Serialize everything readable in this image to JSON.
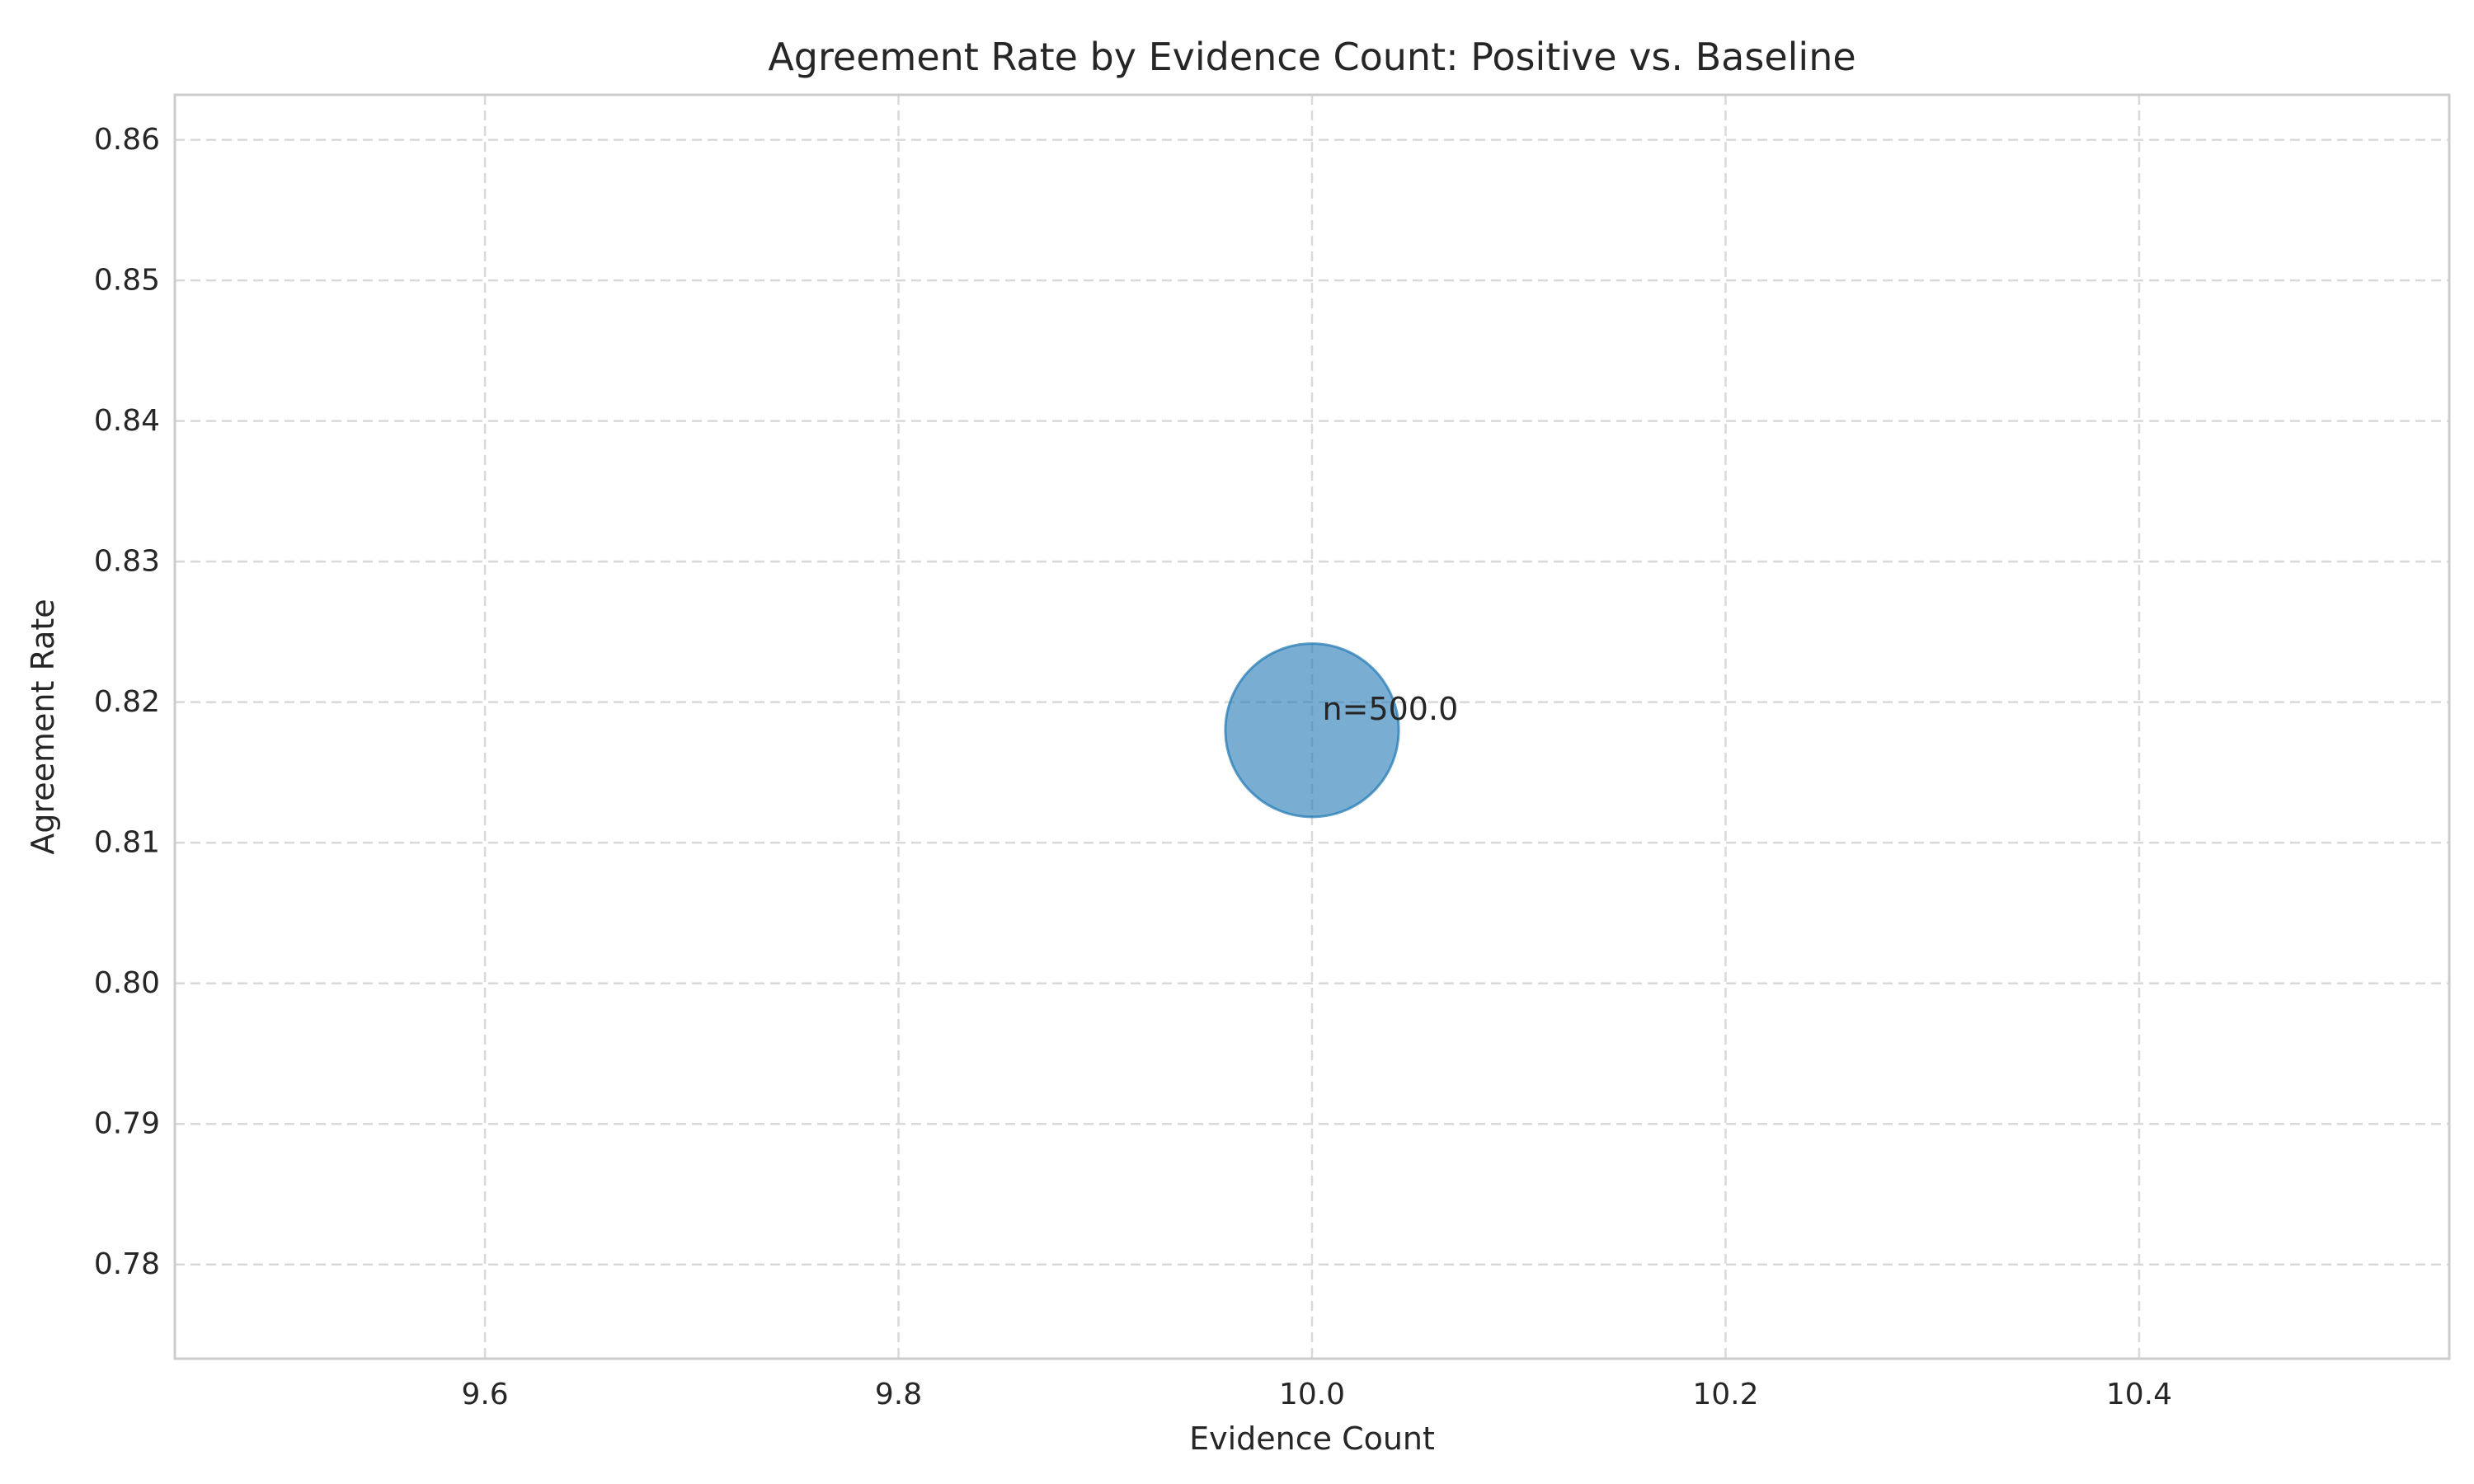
{
  "chart_data": {
    "type": "scatter",
    "title": "Agreement Rate by Evidence Count: Positive vs. Baseline",
    "xlabel": "Evidence Count",
    "ylabel": "Agreement Rate",
    "xlim": [
      9.45,
      10.55
    ],
    "ylim": [
      0.7733,
      0.8632
    ],
    "x_ticks": [
      9.6,
      9.8,
      10.0,
      10.2,
      10.4
    ],
    "x_tick_labels": [
      "9.6",
      "9.8",
      "10.0",
      "10.2",
      "10.4"
    ],
    "y_ticks": [
      0.78,
      0.79,
      0.8,
      0.81,
      0.82,
      0.83,
      0.84,
      0.85,
      0.86
    ],
    "y_tick_labels": [
      "0.78",
      "0.79",
      "0.80",
      "0.81",
      "0.82",
      "0.83",
      "0.84",
      "0.85",
      "0.86"
    ],
    "grid": true,
    "grid_style": "dashed",
    "series": [
      {
        "points": [
          {
            "x": 10.0,
            "y": 0.818,
            "n": 500.0,
            "label": "n=500.0"
          }
        ],
        "color": "#1f77b4",
        "alpha": 0.6
      }
    ]
  }
}
